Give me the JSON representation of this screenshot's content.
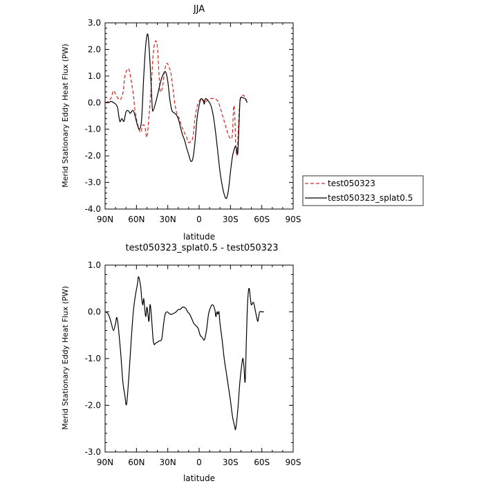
{
  "chart_data": [
    {
      "type": "line",
      "title": "JJA",
      "xlabel": "latitude",
      "ylabel": "Merid Stationary Eddy Heat Flux (PW)",
      "xlim": [
        90,
        -90
      ],
      "ylim": [
        -4.0,
        3.0
      ],
      "x_ticks": [
        90,
        60,
        30,
        0,
        -30,
        -60,
        -90
      ],
      "x_tick_labels": [
        "90N",
        "60N",
        "30N",
        "0",
        "30S",
        "60S",
        "90S"
      ],
      "y_ticks": [
        3.0,
        2.0,
        1.0,
        0.0,
        -1.0,
        -2.0,
        -3.0,
        -4.0
      ],
      "y_tick_labels": [
        "3.0",
        "2.0",
        "1.0",
        "0.0",
        "-1.0",
        "-2.0",
        "-3.0",
        "-4.0"
      ],
      "grid": false,
      "legend_position": "right",
      "series": [
        {
          "name": "test050323",
          "color": "#e02020",
          "dash": "dashed",
          "points": [
            [
              90,
              0.0
            ],
            [
              87,
              0.05
            ],
            [
              84,
              0.2
            ],
            [
              82,
              0.45
            ],
            [
              79,
              0.25
            ],
            [
              76,
              0.1
            ],
            [
              73,
              0.35
            ],
            [
              71,
              1.0
            ],
            [
              68,
              1.28
            ],
            [
              66,
              1.05
            ],
            [
              63,
              0.3
            ],
            [
              61,
              -0.4
            ],
            [
              58,
              -0.95
            ],
            [
              56,
              -1.12
            ],
            [
              54,
              -0.85
            ],
            [
              52,
              -0.9
            ],
            [
              50,
              -1.3
            ],
            [
              48,
              -0.5
            ],
            [
              46,
              0.5
            ],
            [
              44,
              1.8
            ],
            [
              42,
              2.3
            ],
            [
              40,
              2.1
            ],
            [
              38,
              0.8
            ],
            [
              37,
              0.4
            ],
            [
              35,
              0.6
            ],
            [
              33,
              1.2
            ],
            [
              31,
              1.48
            ],
            [
              29,
              1.35
            ],
            [
              27,
              1.1
            ],
            [
              25,
              0.5
            ],
            [
              23,
              -0.1
            ],
            [
              21,
              -0.45
            ],
            [
              19,
              -0.6
            ],
            [
              17,
              -0.85
            ],
            [
              15,
              -1.05
            ],
            [
              12,
              -1.3
            ],
            [
              10,
              -1.5
            ],
            [
              8,
              -1.45
            ],
            [
              6,
              -1.3
            ],
            [
              4,
              -0.6
            ],
            [
              2,
              -0.15
            ],
            [
              0,
              0.05
            ],
            [
              -2,
              0.15
            ],
            [
              -4,
              0.1
            ],
            [
              -6,
              0.0
            ],
            [
              -8,
              0.1
            ],
            [
              -11,
              0.15
            ],
            [
              -14,
              0.15
            ],
            [
              -17,
              0.1
            ],
            [
              -19,
              -0.05
            ],
            [
              -21,
              -0.3
            ],
            [
              -24,
              -0.7
            ],
            [
              -27,
              -1.1
            ],
            [
              -29,
              -1.3
            ],
            [
              -31,
              -1.35
            ],
            [
              -32,
              -1.1
            ],
            [
              -33,
              -0.15
            ],
            [
              -34,
              -0.4
            ],
            [
              -35,
              -1.5
            ],
            [
              -36,
              -2.0
            ],
            [
              -37,
              -1.5
            ],
            [
              -38,
              -0.6
            ],
            [
              -39,
              0.0
            ],
            [
              -40,
              0.2
            ],
            [
              -42,
              0.28
            ],
            [
              -44,
              0.2
            ],
            [
              -46,
              0.0
            ]
          ]
        },
        {
          "name": "test050323_splat0.5",
          "color": "#000000",
          "dash": "solid",
          "points": [
            [
              90,
              0.0
            ],
            [
              87,
              0.0
            ],
            [
              84,
              0.05
            ],
            [
              82,
              0.0
            ],
            [
              80,
              -0.05
            ],
            [
              78,
              -0.2
            ],
            [
              76,
              -0.7
            ],
            [
              74,
              -0.6
            ],
            [
              72,
              -0.7
            ],
            [
              70,
              -0.35
            ],
            [
              68,
              -0.3
            ],
            [
              66,
              -0.4
            ],
            [
              65,
              -0.35
            ],
            [
              63,
              -0.3
            ],
            [
              61,
              -0.55
            ],
            [
              59,
              -0.85
            ],
            [
              57,
              -1.0
            ],
            [
              55,
              -0.6
            ],
            [
              53,
              1.0
            ],
            [
              51,
              2.2
            ],
            [
              49,
              2.55
            ],
            [
              47,
              1.5
            ],
            [
              45,
              -0.1
            ],
            [
              44,
              -0.3
            ],
            [
              42,
              -0.05
            ],
            [
              40,
              0.25
            ],
            [
              38,
              0.6
            ],
            [
              36,
              0.9
            ],
            [
              34,
              1.1
            ],
            [
              32,
              1.15
            ],
            [
              30,
              0.8
            ],
            [
              28,
              0.1
            ],
            [
              26,
              -0.3
            ],
            [
              24,
              -0.38
            ],
            [
              22,
              -0.45
            ],
            [
              20,
              -0.6
            ],
            [
              18,
              -0.9
            ],
            [
              16,
              -1.2
            ],
            [
              14,
              -1.4
            ],
            [
              12,
              -1.7
            ],
            [
              10,
              -1.95
            ],
            [
              8,
              -2.2
            ],
            [
              6,
              -2.1
            ],
            [
              4,
              -1.5
            ],
            [
              2,
              -0.6
            ],
            [
              0,
              -0.1
            ],
            [
              -2,
              0.15
            ],
            [
              -4,
              0.05
            ],
            [
              -5,
              -0.05
            ],
            [
              -6,
              0.15
            ],
            [
              -8,
              0.1
            ],
            [
              -10,
              0.0
            ],
            [
              -12,
              -0.2
            ],
            [
              -14,
              -0.6
            ],
            [
              -16,
              -1.2
            ],
            [
              -18,
              -1.9
            ],
            [
              -20,
              -2.6
            ],
            [
              -22,
              -3.1
            ],
            [
              -24,
              -3.45
            ],
            [
              -26,
              -3.6
            ],
            [
              -28,
              -3.3
            ],
            [
              -30,
              -2.6
            ],
            [
              -32,
              -2.0
            ],
            [
              -34,
              -1.7
            ],
            [
              -35,
              -1.65
            ],
            [
              -36,
              -1.8
            ],
            [
              -37,
              -1.9
            ],
            [
              -38,
              -1.0
            ],
            [
              -39,
              0.0
            ],
            [
              -40,
              0.2
            ],
            [
              -42,
              0.18
            ],
            [
              -44,
              0.15
            ],
            [
              -46,
              0.0
            ]
          ]
        }
      ]
    },
    {
      "type": "line",
      "title": "test050323_splat0.5 - test050323",
      "xlabel": "latitude",
      "ylabel": "Merid Stationary Eddy Heat Flux (PW)",
      "xlim": [
        90,
        -90
      ],
      "ylim": [
        -3.0,
        1.0
      ],
      "x_ticks": [
        90,
        60,
        30,
        0,
        -30,
        -60,
        -90
      ],
      "x_tick_labels": [
        "90N",
        "60N",
        "30N",
        "0",
        "30S",
        "60S",
        "90S"
      ],
      "y_ticks": [
        1.0,
        0.0,
        -1.0,
        -2.0,
        -3.0
      ],
      "y_tick_labels": [
        "1.0",
        "0.0",
        "-1.0",
        "-2.0",
        "-3.0"
      ],
      "grid": false,
      "series": [
        {
          "color": "#000000",
          "dash": "solid",
          "points": [
            [
              90,
              0.0
            ],
            [
              88,
              -0.02
            ],
            [
              86,
              -0.1
            ],
            [
              84,
              -0.25
            ],
            [
              82,
              -0.4
            ],
            [
              80,
              -0.25
            ],
            [
              79,
              -0.12
            ],
            [
              78,
              -0.2
            ],
            [
              77,
              -0.4
            ],
            [
              75,
              -0.9
            ],
            [
              73,
              -1.5
            ],
            [
              71,
              -1.8
            ],
            [
              70,
              -1.98
            ],
            [
              69,
              -1.9
            ],
            [
              67,
              -1.3
            ],
            [
              65,
              -0.6
            ],
            [
              63,
              0.0
            ],
            [
              61,
              0.35
            ],
            [
              59,
              0.6
            ],
            [
              58,
              0.75
            ],
            [
              56,
              0.55
            ],
            [
              55,
              0.3
            ],
            [
              54,
              0.15
            ],
            [
              53,
              0.28
            ],
            [
              52,
              0.05
            ],
            [
              51,
              -0.1
            ],
            [
              50,
              0.1
            ],
            [
              49,
              -0.05
            ],
            [
              48,
              -0.2
            ],
            [
              47,
              0.15
            ],
            [
              46,
              0.0
            ],
            [
              45,
              -0.3
            ],
            [
              44,
              -0.6
            ],
            [
              43,
              -0.7
            ],
            [
              42,
              -0.68
            ],
            [
              40,
              -0.65
            ],
            [
              38,
              -0.62
            ],
            [
              36,
              -0.6
            ],
            [
              35,
              -0.45
            ],
            [
              33,
              -0.1
            ],
            [
              31,
              0.0
            ],
            [
              28,
              -0.05
            ],
            [
              26,
              -0.05
            ],
            [
              24,
              -0.03
            ],
            [
              22,
              0.0
            ],
            [
              20,
              0.05
            ],
            [
              18,
              0.05
            ],
            [
              16,
              0.1
            ],
            [
              13,
              0.08
            ],
            [
              11,
              0.0
            ],
            [
              9,
              -0.05
            ],
            [
              7,
              -0.15
            ],
            [
              5,
              -0.25
            ],
            [
              3,
              -0.3
            ],
            [
              1,
              -0.35
            ],
            [
              -1,
              -0.5
            ],
            [
              -3,
              -0.55
            ],
            [
              -5,
              -0.6
            ],
            [
              -7,
              -0.4
            ],
            [
              -9,
              -0.05
            ],
            [
              -11,
              0.1
            ],
            [
              -13,
              0.15
            ],
            [
              -15,
              0.05
            ],
            [
              -16,
              -0.1
            ],
            [
              -17,
              0.0
            ],
            [
              -18,
              -0.05
            ],
            [
              -19,
              0.0
            ],
            [
              -20,
              -0.25
            ],
            [
              -22,
              -0.6
            ],
            [
              -24,
              -1.0
            ],
            [
              -26,
              -1.3
            ],
            [
              -28,
              -1.6
            ],
            [
              -30,
              -1.9
            ],
            [
              -32,
              -2.25
            ],
            [
              -34,
              -2.45
            ],
            [
              -35,
              -2.5
            ],
            [
              -37,
              -2.1
            ],
            [
              -39,
              -1.5
            ],
            [
              -41,
              -1.1
            ],
            [
              -42,
              -1.0
            ],
            [
              -43,
              -1.2
            ],
            [
              -44,
              -1.5
            ],
            [
              -45,
              -0.8
            ],
            [
              -46,
              0.0
            ],
            [
              -47,
              0.4
            ],
            [
              -48,
              0.5
            ],
            [
              -49,
              0.3
            ],
            [
              -50,
              0.15
            ],
            [
              -52,
              0.2
            ],
            [
              -54,
              0.0
            ],
            [
              -56,
              -0.2
            ],
            [
              -57,
              -0.1
            ],
            [
              -58,
              0.0
            ],
            [
              -60,
              0.0
            ],
            [
              -62,
              0.0
            ]
          ]
        }
      ]
    }
  ]
}
